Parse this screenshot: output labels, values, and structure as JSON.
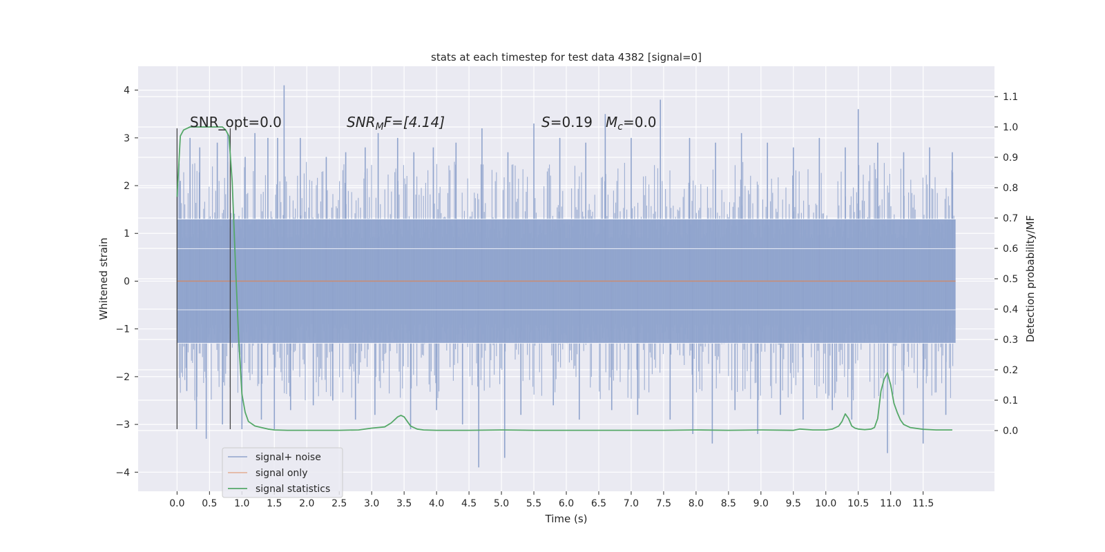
{
  "chart_data": {
    "type": "line",
    "title": "stats at each timestep for test data 4382 [signal=0]",
    "xlabel": "Time (s)",
    "ylabel_left": "Whitened strain",
    "ylabel_right": "Detection probability/MF",
    "xlim": [
      -0.6,
      12.6
    ],
    "xticks": [
      0.0,
      0.5,
      1.0,
      1.5,
      2.0,
      2.5,
      3.0,
      3.5,
      4.0,
      4.5,
      5.0,
      5.5,
      6.0,
      6.5,
      7.0,
      7.5,
      8.0,
      8.5,
      9.0,
      9.5,
      10.0,
      10.5,
      11.0,
      11.5
    ],
    "xtick_labels": [
      "0.0",
      "0.5",
      "1.0",
      "1.5",
      "2.0",
      "2.5",
      "3.0",
      "3.5",
      "4.0",
      "4.5",
      "5.0",
      "5.5",
      "6.0",
      "6.5",
      "7.0",
      "7.5",
      "8.0",
      "8.5",
      "9.0",
      "9.5",
      "10.0",
      "10.5",
      "11.0",
      "11.5"
    ],
    "ylim_left": [
      -4.4,
      4.5
    ],
    "yticks_left": [
      -4,
      -3,
      -2,
      -1,
      0,
      1,
      2,
      3,
      4
    ],
    "ytick_labels_left": [
      "−4",
      "−3",
      "−2",
      "−1",
      "0",
      "1",
      "2",
      "3",
      "4"
    ],
    "ylim_right": [
      -0.2,
      1.2
    ],
    "yticks_right": [
      0.0,
      0.1,
      0.2,
      0.3,
      0.4,
      0.5,
      0.6,
      0.7,
      0.8,
      0.9,
      1.0,
      1.1
    ],
    "ytick_labels_right": [
      "0.0",
      "0.1",
      "0.2",
      "0.3",
      "0.4",
      "0.5",
      "0.6",
      "0.7",
      "0.8",
      "0.9",
      "1.0",
      "1.1"
    ],
    "grid": true,
    "legend_placement": "lower-left",
    "annotations": {
      "snr_opt": "SNR_opt=0.0",
      "snr_mf_main": "SNR",
      "snr_mf_sub": "M",
      "snr_mf_rest": "F=[4.14]",
      "s_main": "S",
      "s_rest": "=0.19",
      "mc_main": "M",
      "mc_sub": "c",
      "mc_rest": "=0.0"
    },
    "vlines": [
      0.0,
      0.82
    ],
    "series": [
      {
        "name": "signal+ noise",
        "color": "#8fa3cc",
        "axis": "left",
        "x_range": [
          0.0,
          12.0
        ],
        "band_lower": -1.3,
        "band_upper": 1.3,
        "spikes": [
          {
            "x": 0.05,
            "y": 2.1
          },
          {
            "x": 0.2,
            "y": 3.0
          },
          {
            "x": 0.35,
            "y": 2.8
          },
          {
            "x": 0.62,
            "y": 2.9
          },
          {
            "x": 0.78,
            "y": 3.1
          },
          {
            "x": 1.05,
            "y": 2.6
          },
          {
            "x": 1.2,
            "y": 3.1
          },
          {
            "x": 1.4,
            "y": 3.0
          },
          {
            "x": 1.55,
            "y": 3.0
          },
          {
            "x": 1.65,
            "y": 4.1
          },
          {
            "x": 1.9,
            "y": 3.0
          },
          {
            "x": 2.3,
            "y": 2.6
          },
          {
            "x": 2.6,
            "y": 2.7
          },
          {
            "x": 2.9,
            "y": 2.8
          },
          {
            "x": 3.1,
            "y": 3.1
          },
          {
            "x": 3.4,
            "y": 3.0
          },
          {
            "x": 3.65,
            "y": 2.7
          },
          {
            "x": 3.95,
            "y": 2.8
          },
          {
            "x": 4.3,
            "y": 2.9
          },
          {
            "x": 4.7,
            "y": 3.2
          },
          {
            "x": 5.1,
            "y": 2.7
          },
          {
            "x": 5.5,
            "y": 3.3
          },
          {
            "x": 5.9,
            "y": 3.0
          },
          {
            "x": 6.3,
            "y": 2.9
          },
          {
            "x": 6.6,
            "y": 3.5
          },
          {
            "x": 7.0,
            "y": 3.0
          },
          {
            "x": 7.45,
            "y": 3.8
          },
          {
            "x": 7.9,
            "y": 3.0
          },
          {
            "x": 8.3,
            "y": 2.9
          },
          {
            "x": 8.7,
            "y": 3.1
          },
          {
            "x": 9.1,
            "y": 2.9
          },
          {
            "x": 9.5,
            "y": 2.8
          },
          {
            "x": 9.9,
            "y": 3.0
          },
          {
            "x": 10.3,
            "y": 2.8
          },
          {
            "x": 10.5,
            "y": 3.6
          },
          {
            "x": 10.8,
            "y": 2.9
          },
          {
            "x": 11.2,
            "y": 2.7
          },
          {
            "x": 11.6,
            "y": 2.8
          },
          {
            "x": 11.95,
            "y": 2.7
          },
          {
            "x": 0.15,
            "y": -2.3
          },
          {
            "x": 0.3,
            "y": -3.1
          },
          {
            "x": 0.45,
            "y": -3.3
          },
          {
            "x": 0.7,
            "y": -3.0
          },
          {
            "x": 1.0,
            "y": -3.1
          },
          {
            "x": 1.3,
            "y": -2.9
          },
          {
            "x": 1.5,
            "y": -3.1
          },
          {
            "x": 1.75,
            "y": -2.7
          },
          {
            "x": 2.1,
            "y": -2.6
          },
          {
            "x": 2.4,
            "y": -2.5
          },
          {
            "x": 2.75,
            "y": -2.9
          },
          {
            "x": 3.05,
            "y": -2.8
          },
          {
            "x": 3.6,
            "y": -3.1
          },
          {
            "x": 4.0,
            "y": -2.7
          },
          {
            "x": 4.4,
            "y": -3.0
          },
          {
            "x": 4.65,
            "y": -3.9
          },
          {
            "x": 5.05,
            "y": -3.7
          },
          {
            "x": 5.3,
            "y": -2.8
          },
          {
            "x": 5.8,
            "y": -2.6
          },
          {
            "x": 6.2,
            "y": -2.9
          },
          {
            "x": 6.7,
            "y": -2.7
          },
          {
            "x": 7.1,
            "y": -2.8
          },
          {
            "x": 7.6,
            "y": -2.9
          },
          {
            "x": 7.95,
            "y": -3.2
          },
          {
            "x": 8.25,
            "y": -3.4
          },
          {
            "x": 8.6,
            "y": -2.7
          },
          {
            "x": 8.95,
            "y": -3.2
          },
          {
            "x": 9.3,
            "y": -2.8
          },
          {
            "x": 9.65,
            "y": -2.9
          },
          {
            "x": 10.1,
            "y": -2.7
          },
          {
            "x": 10.4,
            "y": -2.9
          },
          {
            "x": 10.95,
            "y": -3.6
          },
          {
            "x": 11.2,
            "y": -2.8
          },
          {
            "x": 11.5,
            "y": -3.4
          },
          {
            "x": 11.85,
            "y": -2.8
          }
        ]
      },
      {
        "name": "signal only",
        "color": "#dd8452",
        "axis": "left",
        "x": [
          0.0,
          12.0
        ],
        "y": [
          0.0,
          0.0
        ]
      },
      {
        "name": "signal statistics",
        "color": "#55a868",
        "axis": "right",
        "x": [
          0.0,
          0.05,
          0.1,
          0.15,
          0.2,
          0.3,
          0.4,
          0.5,
          0.6,
          0.7,
          0.75,
          0.8,
          0.85,
          0.9,
          0.95,
          1.0,
          1.05,
          1.1,
          1.2,
          1.3,
          1.4,
          1.5,
          1.7,
          2.0,
          2.5,
          2.8,
          3.0,
          3.2,
          3.3,
          3.4,
          3.45,
          3.5,
          3.55,
          3.6,
          3.7,
          3.8,
          4.0,
          4.5,
          5.0,
          5.5,
          6.0,
          6.5,
          7.0,
          7.5,
          8.0,
          8.5,
          9.0,
          9.5,
          9.6,
          9.8,
          10.0,
          10.1,
          10.2,
          10.25,
          10.3,
          10.35,
          10.4,
          10.45,
          10.5,
          10.6,
          10.7,
          10.75,
          10.8,
          10.85,
          10.9,
          10.95,
          11.0,
          11.05,
          11.1,
          11.15,
          11.2,
          11.3,
          11.5,
          11.7,
          11.95
        ],
        "y": [
          0.77,
          0.97,
          0.99,
          0.995,
          1.0,
          1.0,
          1.0,
          1.0,
          1.0,
          1.0,
          0.99,
          0.97,
          0.82,
          0.55,
          0.3,
          0.12,
          0.06,
          0.03,
          0.015,
          0.01,
          0.005,
          0.002,
          0.001,
          0.001,
          0.001,
          0.002,
          0.008,
          0.012,
          0.025,
          0.045,
          0.05,
          0.045,
          0.03,
          0.015,
          0.005,
          0.002,
          0.001,
          0.001,
          0.002,
          0.001,
          0.001,
          0.001,
          0.001,
          0.001,
          0.002,
          0.001,
          0.002,
          0.001,
          0.005,
          0.002,
          0.002,
          0.005,
          0.015,
          0.03,
          0.055,
          0.04,
          0.015,
          0.008,
          0.005,
          0.003,
          0.005,
          0.01,
          0.04,
          0.13,
          0.17,
          0.19,
          0.15,
          0.09,
          0.06,
          0.035,
          0.02,
          0.01,
          0.004,
          0.002,
          0.002
        ]
      }
    ]
  }
}
